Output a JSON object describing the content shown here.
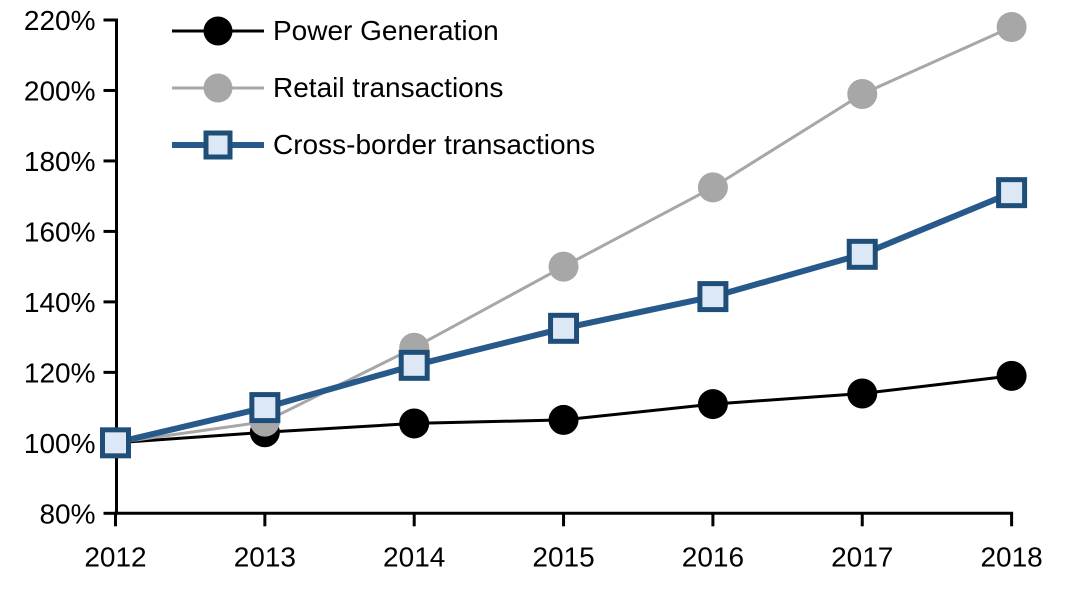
{
  "chart_data": {
    "type": "line",
    "title": "",
    "xlabel": "",
    "ylabel": "",
    "x": [
      2012,
      2013,
      2014,
      2015,
      2016,
      2017,
      2018
    ],
    "xtick_labels": [
      "2012",
      "2013",
      "2014",
      "2015",
      "2016",
      "2017",
      "2018"
    ],
    "ylim": [
      80,
      220
    ],
    "ytick_step": 20,
    "ytick_labels": [
      "80%",
      "100%",
      "120%",
      "140%",
      "160%",
      "180%",
      "200%",
      "220%"
    ],
    "grid": false,
    "legend_position": "top-left",
    "axis_color": "#000000",
    "series": [
      {
        "name": "Power Generation",
        "values": [
          100,
          103,
          105.5,
          106.5,
          111,
          114,
          119
        ],
        "color": "#000000",
        "line_width": 3,
        "marker": "circle",
        "marker_fill": "#000000",
        "marker_border": null
      },
      {
        "name": "Retail transactions",
        "values": [
          100,
          106,
          127,
          150,
          172.5,
          199,
          218
        ],
        "color": "#a7a7a7",
        "line_width": 3,
        "marker": "circle",
        "marker_fill": "#a7a7a7",
        "marker_border": null
      },
      {
        "name": "Cross-border transactions",
        "values": [
          100,
          110,
          122,
          132.5,
          141.5,
          153.5,
          171
        ],
        "color": "#27598a",
        "line_width": 6,
        "marker": "square",
        "marker_fill": "#dce8f5",
        "marker_border": "#1f4e79"
      }
    ]
  }
}
